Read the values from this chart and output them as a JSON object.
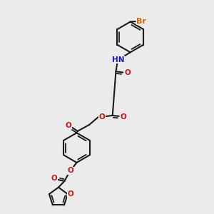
{
  "bg_color": "#ebebeb",
  "bond_color": "#1a1a1a",
  "bond_width": 1.5,
  "atom_colors": {
    "N": "#1414cc",
    "O": "#cc1414",
    "Br": "#cc6600"
  },
  "fs": 7.5,
  "figsize": [
    3.0,
    3.0
  ],
  "dpi": 100,
  "xlim": [
    0,
    10
  ],
  "ylim": [
    0,
    10
  ]
}
